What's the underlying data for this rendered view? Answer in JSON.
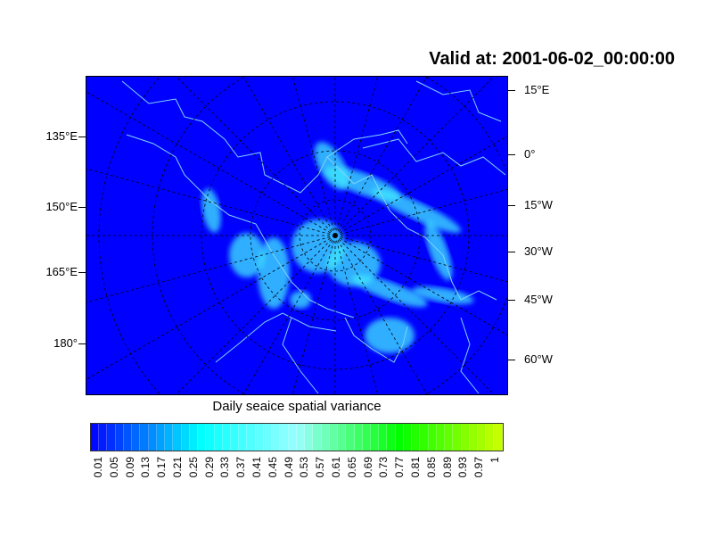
{
  "title": "Valid at: 2001-06-02_00:00:00",
  "subtitle": "Daily seaice spatial variance",
  "map": {
    "projection": "polar stereographic (north)",
    "background_color": "#0000ff",
    "coastline_color": "#7fd4ff",
    "grid_style": "dashed black",
    "left_lon_labels": [
      "135°E",
      "150°E",
      "165°E",
      "180°"
    ],
    "right_lon_labels": [
      "15°E",
      "0°",
      "15°W",
      "30°W",
      "45°W",
      "60°W"
    ]
  },
  "colorbar": {
    "orientation": "horizontal",
    "labels": [
      "0.01",
      "0.05",
      "0.09",
      "0.13",
      "0.17",
      "0.21",
      "0.25",
      "0.29",
      "0.33",
      "0.37",
      "0.41",
      "0.45",
      "0.49",
      "0.53",
      "0.57",
      "0.61",
      "0.65",
      "0.69",
      "0.73",
      "0.77",
      "0.81",
      "0.85",
      "0.89",
      "0.93",
      "0.97",
      "1"
    ],
    "color_stops": [
      "#0000ff",
      "#00ffff",
      "#99ffff",
      "#00ff00",
      "#ccff00"
    ]
  }
}
